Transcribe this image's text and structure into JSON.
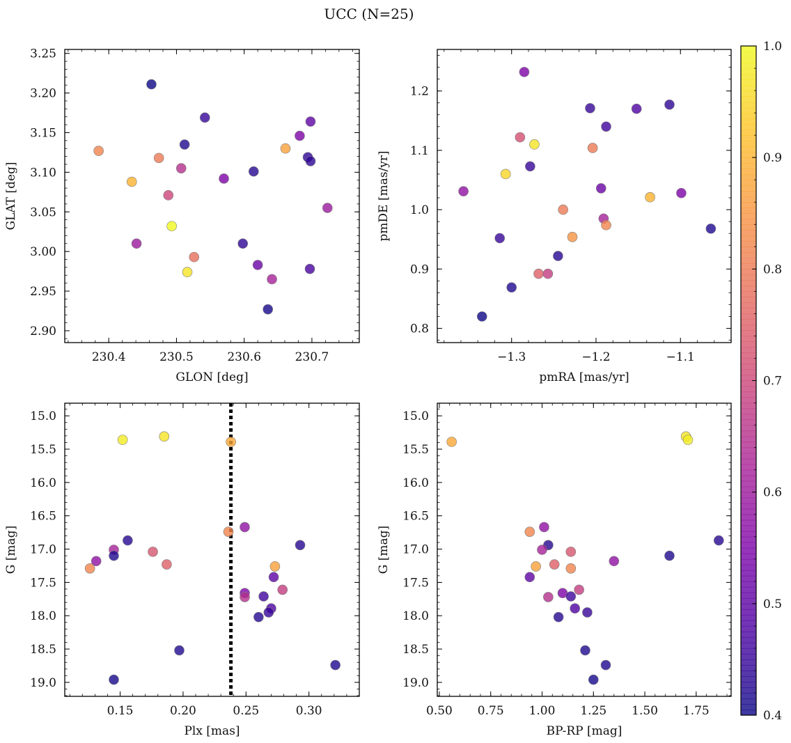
{
  "suptitle": "UCC (N=25)",
  "colorbar": {
    "range": [
      0.4,
      1.0
    ],
    "ticks": [
      0.4,
      0.5,
      0.6,
      0.7,
      0.8,
      0.9,
      1.0
    ],
    "tick_labels": [
      "0.4",
      "0.5",
      "0.6",
      "0.7",
      "0.8",
      "0.9",
      "1.0"
    ],
    "colormap": "plasma"
  },
  "chart_data": [
    {
      "type": "scatter",
      "xlabel": "GLON [deg]",
      "ylabel": "GLAT [deg]",
      "xlim": [
        230.335,
        230.77
      ],
      "ylim": [
        2.885,
        3.255
      ],
      "xticks": [
        230.4,
        230.5,
        230.6,
        230.7
      ],
      "xtick_labels": [
        "230.4",
        "230.5",
        "230.6",
        "230.7"
      ],
      "yticks": [
        2.9,
        2.95,
        3.0,
        3.05,
        3.1,
        3.15,
        3.2,
        3.25
      ],
      "ytick_labels": [
        "2.90",
        "2.95",
        "3.00",
        "3.05",
        "3.10",
        "3.15",
        "3.20",
        "3.25"
      ],
      "points": [
        {
          "x": 230.463,
          "y": 3.211,
          "c": 0.4
        },
        {
          "x": 230.542,
          "y": 3.169,
          "c": 0.45
        },
        {
          "x": 230.512,
          "y": 3.135,
          "c": 0.42
        },
        {
          "x": 230.385,
          "y": 3.127,
          "c": 0.82
        },
        {
          "x": 230.474,
          "y": 3.118,
          "c": 0.8
        },
        {
          "x": 230.507,
          "y": 3.105,
          "c": 0.65
        },
        {
          "x": 230.434,
          "y": 3.088,
          "c": 0.9
        },
        {
          "x": 230.57,
          "y": 3.092,
          "c": 0.55
        },
        {
          "x": 230.614,
          "y": 3.101,
          "c": 0.43
        },
        {
          "x": 230.488,
          "y": 3.071,
          "c": 0.7
        },
        {
          "x": 230.661,
          "y": 3.13,
          "c": 0.87
        },
        {
          "x": 230.682,
          "y": 3.146,
          "c": 0.55
        },
        {
          "x": 230.698,
          "y": 3.164,
          "c": 0.5
        },
        {
          "x": 230.694,
          "y": 3.119,
          "c": 0.44
        },
        {
          "x": 230.698,
          "y": 3.114,
          "c": 0.44
        },
        {
          "x": 230.723,
          "y": 3.055,
          "c": 0.6
        },
        {
          "x": 230.493,
          "y": 3.032,
          "c": 1.0
        },
        {
          "x": 230.441,
          "y": 3.01,
          "c": 0.6
        },
        {
          "x": 230.598,
          "y": 3.01,
          "c": 0.44
        },
        {
          "x": 230.526,
          "y": 2.993,
          "c": 0.78
        },
        {
          "x": 230.516,
          "y": 2.974,
          "c": 0.97
        },
        {
          "x": 230.62,
          "y": 2.983,
          "c": 0.52
        },
        {
          "x": 230.697,
          "y": 2.978,
          "c": 0.47
        },
        {
          "x": 230.641,
          "y": 2.965,
          "c": 0.62
        },
        {
          "x": 230.635,
          "y": 2.927,
          "c": 0.41
        }
      ]
    },
    {
      "type": "scatter",
      "xlabel": "pmRA [mas/yr]",
      "ylabel": "pmDE [mas/yr]",
      "xlim": [
        -1.388,
        -1.04
      ],
      "ylim": [
        0.776,
        1.27
      ],
      "xticks": [
        -1.3,
        -1.2,
        -1.1
      ],
      "xtick_labels": [
        "−1.3",
        "−1.2",
        "−1.1"
      ],
      "yticks": [
        0.8,
        0.9,
        1.0,
        1.1,
        1.2
      ],
      "ytick_labels": [
        "0.8",
        "0.9",
        "1.0",
        "1.1",
        "1.2"
      ],
      "points": [
        {
          "x": -1.285,
          "y": 1.232,
          "c": 0.55
        },
        {
          "x": -1.207,
          "y": 1.171,
          "c": 0.45
        },
        {
          "x": -1.152,
          "y": 1.17,
          "c": 0.48
        },
        {
          "x": -1.113,
          "y": 1.177,
          "c": 0.44
        },
        {
          "x": -1.188,
          "y": 1.14,
          "c": 0.46
        },
        {
          "x": -1.29,
          "y": 1.122,
          "c": 0.72
        },
        {
          "x": -1.273,
          "y": 1.11,
          "c": 0.97
        },
        {
          "x": -1.204,
          "y": 1.104,
          "c": 0.8
        },
        {
          "x": -1.278,
          "y": 1.073,
          "c": 0.45
        },
        {
          "x": -1.307,
          "y": 1.06,
          "c": 0.95
        },
        {
          "x": -1.357,
          "y": 1.031,
          "c": 0.58
        },
        {
          "x": -1.194,
          "y": 1.036,
          "c": 0.52
        },
        {
          "x": -1.099,
          "y": 1.028,
          "c": 0.55
        },
        {
          "x": -1.136,
          "y": 1.021,
          "c": 0.9
        },
        {
          "x": -1.239,
          "y": 1.0,
          "c": 0.8
        },
        {
          "x": -1.191,
          "y": 0.985,
          "c": 0.62
        },
        {
          "x": -1.188,
          "y": 0.974,
          "c": 0.82
        },
        {
          "x": -1.064,
          "y": 0.968,
          "c": 0.42
        },
        {
          "x": -1.314,
          "y": 0.952,
          "c": 0.45
        },
        {
          "x": -1.228,
          "y": 0.954,
          "c": 0.85
        },
        {
          "x": -1.245,
          "y": 0.922,
          "c": 0.43
        },
        {
          "x": -1.268,
          "y": 0.892,
          "c": 0.75
        },
        {
          "x": -1.257,
          "y": 0.892,
          "c": 0.68
        },
        {
          "x": -1.3,
          "y": 0.869,
          "c": 0.42
        },
        {
          "x": -1.335,
          "y": 0.82,
          "c": 0.4
        }
      ]
    },
    {
      "type": "scatter",
      "xlabel": "Plx [mas]",
      "ylabel": "G [mag]",
      "xlim": [
        0.106,
        0.34
      ],
      "ylim": [
        19.21,
        14.81
      ],
      "y_inverted": true,
      "vline": {
        "x": 0.238,
        "style": "dotted"
      },
      "xticks": [
        0.15,
        0.2,
        0.25,
        0.3
      ],
      "xtick_labels": [
        "0.15",
        "0.20",
        "0.25",
        "0.30"
      ],
      "yticks": [
        15.0,
        15.5,
        16.0,
        16.5,
        17.0,
        17.5,
        18.0,
        18.5,
        19.0
      ],
      "ytick_labels": [
        "15.0",
        "15.5",
        "16.0",
        "16.5",
        "17.0",
        "17.5",
        "18.0",
        "18.5",
        "19.0"
      ],
      "points": [
        {
          "x": 0.152,
          "y": 15.36,
          "c": 0.98
        },
        {
          "x": 0.185,
          "y": 15.31,
          "c": 0.97
        },
        {
          "x": 0.238,
          "y": 15.39,
          "c": 0.88
        },
        {
          "x": 0.236,
          "y": 16.74,
          "c": 0.82
        },
        {
          "x": 0.249,
          "y": 16.67,
          "c": 0.58
        },
        {
          "x": 0.156,
          "y": 16.87,
          "c": 0.43
        },
        {
          "x": 0.145,
          "y": 17.01,
          "c": 0.62
        },
        {
          "x": 0.145,
          "y": 17.1,
          "c": 0.42
        },
        {
          "x": 0.131,
          "y": 17.18,
          "c": 0.58
        },
        {
          "x": 0.126,
          "y": 17.29,
          "c": 0.82
        },
        {
          "x": 0.176,
          "y": 17.04,
          "c": 0.73
        },
        {
          "x": 0.187,
          "y": 17.23,
          "c": 0.75
        },
        {
          "x": 0.293,
          "y": 16.94,
          "c": 0.43
        },
        {
          "x": 0.273,
          "y": 17.26,
          "c": 0.87
        },
        {
          "x": 0.272,
          "y": 17.42,
          "c": 0.5
        },
        {
          "x": 0.279,
          "y": 17.61,
          "c": 0.68
        },
        {
          "x": 0.249,
          "y": 17.66,
          "c": 0.55
        },
        {
          "x": 0.249,
          "y": 17.72,
          "c": 0.65
        },
        {
          "x": 0.264,
          "y": 17.71,
          "c": 0.46
        },
        {
          "x": 0.27,
          "y": 17.89,
          "c": 0.48
        },
        {
          "x": 0.268,
          "y": 17.95,
          "c": 0.45
        },
        {
          "x": 0.26,
          "y": 18.02,
          "c": 0.43
        },
        {
          "x": 0.197,
          "y": 18.52,
          "c": 0.42
        },
        {
          "x": 0.145,
          "y": 18.96,
          "c": 0.41
        },
        {
          "x": 0.321,
          "y": 18.74,
          "c": 0.42
        }
      ]
    },
    {
      "type": "scatter",
      "xlabel": "BP-RP [mag]",
      "ylabel": "G [mag]",
      "xlim": [
        0.49,
        1.92
      ],
      "ylim": [
        19.21,
        14.81
      ],
      "y_inverted": true,
      "xticks": [
        0.5,
        0.75,
        1.0,
        1.25,
        1.5,
        1.75
      ],
      "xtick_labels": [
        "0.50",
        "0.75",
        "1.00",
        "1.25",
        "1.50",
        "1.75"
      ],
      "yticks": [
        15.0,
        15.5,
        16.0,
        16.5,
        17.0,
        17.5,
        18.0,
        18.5,
        19.0
      ],
      "ytick_labels": [
        "15.0",
        "15.5",
        "16.0",
        "16.5",
        "17.0",
        "17.5",
        "18.0",
        "18.5",
        "19.0"
      ],
      "points": [
        {
          "x": 0.56,
          "y": 15.39,
          "c": 0.88
        },
        {
          "x": 1.7,
          "y": 15.31,
          "c": 0.97
        },
        {
          "x": 1.71,
          "y": 15.36,
          "c": 0.98
        },
        {
          "x": 1.01,
          "y": 16.67,
          "c": 0.58
        },
        {
          "x": 0.94,
          "y": 16.74,
          "c": 0.82
        },
        {
          "x": 1.03,
          "y": 16.94,
          "c": 0.43
        },
        {
          "x": 1.0,
          "y": 17.01,
          "c": 0.62
        },
        {
          "x": 1.14,
          "y": 17.04,
          "c": 0.73
        },
        {
          "x": 1.86,
          "y": 16.87,
          "c": 0.43
        },
        {
          "x": 1.62,
          "y": 17.1,
          "c": 0.42
        },
        {
          "x": 1.35,
          "y": 17.18,
          "c": 0.58
        },
        {
          "x": 0.97,
          "y": 17.26,
          "c": 0.87
        },
        {
          "x": 1.06,
          "y": 17.23,
          "c": 0.75
        },
        {
          "x": 1.14,
          "y": 17.29,
          "c": 0.82
        },
        {
          "x": 0.94,
          "y": 17.42,
          "c": 0.5
        },
        {
          "x": 1.18,
          "y": 17.61,
          "c": 0.68
        },
        {
          "x": 1.1,
          "y": 17.66,
          "c": 0.55
        },
        {
          "x": 1.14,
          "y": 17.71,
          "c": 0.46
        },
        {
          "x": 1.03,
          "y": 17.72,
          "c": 0.65
        },
        {
          "x": 1.16,
          "y": 17.89,
          "c": 0.48
        },
        {
          "x": 1.22,
          "y": 17.95,
          "c": 0.45
        },
        {
          "x": 1.08,
          "y": 18.02,
          "c": 0.43
        },
        {
          "x": 1.21,
          "y": 18.52,
          "c": 0.42
        },
        {
          "x": 1.31,
          "y": 18.74,
          "c": 0.42
        },
        {
          "x": 1.25,
          "y": 18.96,
          "c": 0.41
        }
      ]
    }
  ]
}
